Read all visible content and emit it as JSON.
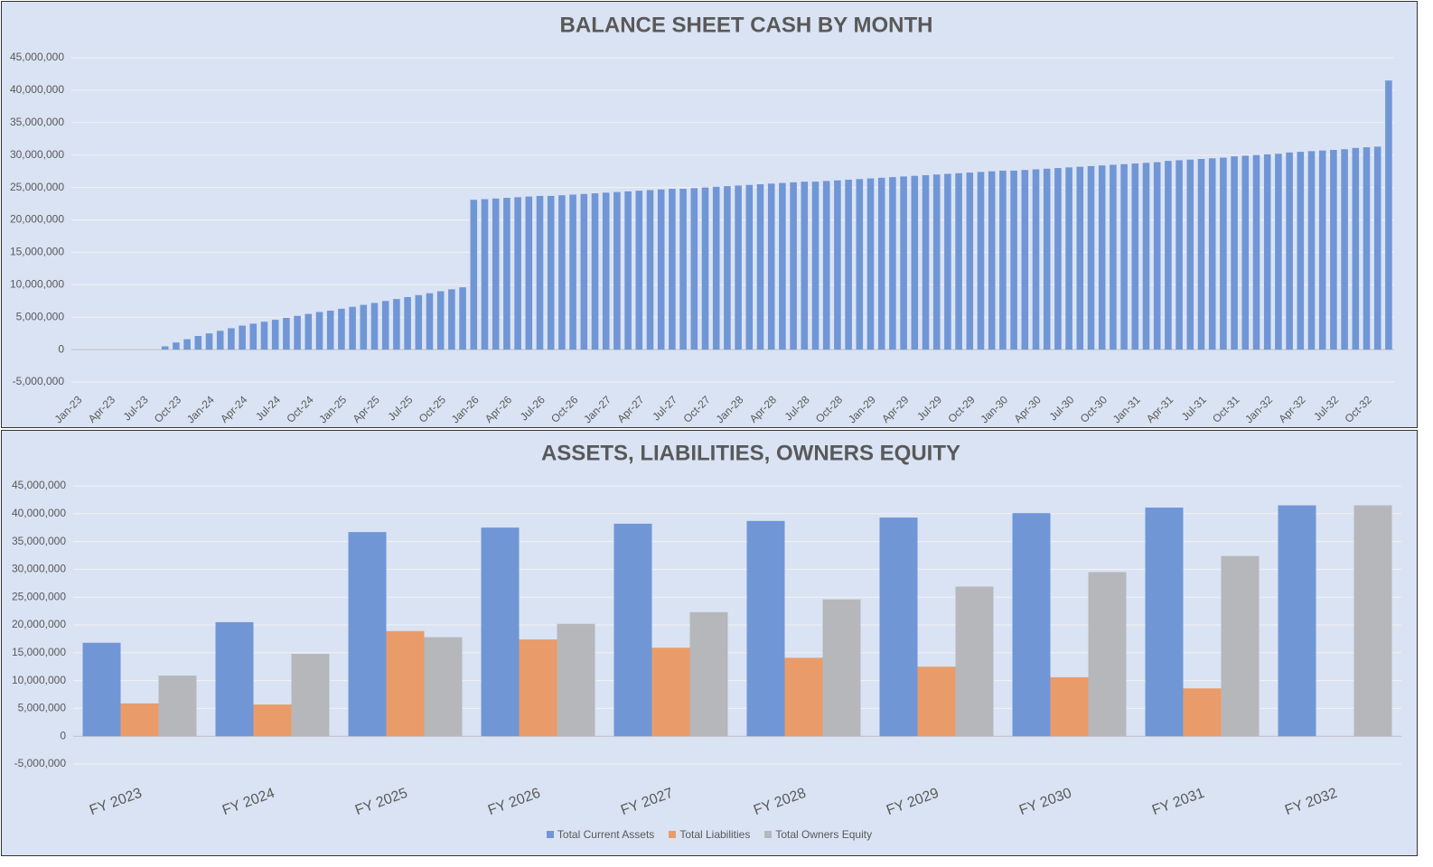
{
  "chart_data": [
    {
      "type": "bar",
      "title": "BALANCE SHEET CASH BY MONTH",
      "color": "#7096d6",
      "grid": true,
      "ylim": [
        -5000000,
        45000000
      ],
      "yticks": [
        {
          "value": -5000000,
          "label": "-5,000,000"
        },
        0,
        {
          "value": 5000000,
          "label": "5,000,000"
        },
        {
          "value": 10000000,
          "label": "10,000,000"
        },
        {
          "value": 15000000,
          "label": "15,000,000"
        },
        {
          "value": 20000000,
          "label": "20,000,000"
        },
        {
          "value": 25000000,
          "label": "25,000,000"
        },
        {
          "value": 30000000,
          "label": "30,000,000"
        },
        {
          "value": 35000000,
          "label": "35,000,000"
        },
        {
          "value": 40000000,
          "label": "40,000,000"
        },
        {
          "value": 45000000,
          "label": "45,000,000"
        }
      ],
      "categories": [
        "Jan-23",
        null,
        null,
        "Apr-23",
        null,
        null,
        "Jul-23",
        null,
        null,
        "Oct-23",
        null,
        null,
        "Jan-24",
        null,
        null,
        "Apr-24",
        null,
        null,
        "Jul-24",
        null,
        null,
        "Oct-24",
        null,
        null,
        "Jan-25",
        null,
        null,
        "Apr-25",
        null,
        null,
        "Jul-25",
        null,
        null,
        "Oct-25",
        null,
        null,
        "Jan-26",
        null,
        null,
        "Apr-26",
        null,
        null,
        "Jul-26",
        null,
        null,
        "Oct-26",
        null,
        null,
        "Jan-27",
        null,
        null,
        "Apr-27",
        null,
        null,
        "Jul-27",
        null,
        null,
        "Oct-27",
        null,
        null,
        "Jan-28",
        null,
        null,
        "Apr-28",
        null,
        null,
        "Jul-28",
        null,
        null,
        "Oct-28",
        null,
        null,
        "Jan-29",
        null,
        null,
        "Apr-29",
        null,
        null,
        "Jul-29",
        null,
        null,
        "Oct-29",
        null,
        null,
        "Jan-30",
        null,
        null,
        "Apr-30",
        null,
        null,
        "Jul-30",
        null,
        null,
        "Oct-30",
        null,
        null,
        "Jan-31",
        null,
        null,
        "Apr-31",
        null,
        null,
        "Jul-31",
        null,
        null,
        "Oct-31",
        null,
        null,
        "Jan-32",
        null,
        null,
        "Apr-32",
        null,
        null,
        "Jul-32",
        null,
        null,
        "Oct-32",
        null,
        null
      ],
      "values": [
        0,
        0,
        0,
        0,
        0,
        0,
        0,
        0,
        500000,
        1100000,
        1600000,
        2100000,
        2500000,
        2900000,
        3300000,
        3700000,
        4000000,
        4300000,
        4600000,
        4900000,
        5200000,
        5500000,
        5800000,
        6000000,
        6300000,
        6600000,
        6900000,
        7200000,
        7500000,
        7800000,
        8100000,
        8400000,
        8700000,
        9000000,
        9300000,
        9600000,
        23100000,
        23200000,
        23300000,
        23400000,
        23500000,
        23600000,
        23700000,
        23700000,
        23800000,
        23900000,
        24000000,
        24100000,
        24200000,
        24300000,
        24400000,
        24500000,
        24600000,
        24700000,
        24800000,
        24800000,
        24900000,
        25000000,
        25100000,
        25200000,
        25300000,
        25400000,
        25500000,
        25600000,
        25700000,
        25800000,
        25900000,
        25900000,
        26000000,
        26100000,
        26200000,
        26300000,
        26400000,
        26500000,
        26600000,
        26700000,
        26800000,
        26900000,
        27000000,
        27100000,
        27200000,
        27300000,
        27400000,
        27500000,
        27600000,
        27600000,
        27700000,
        27800000,
        27900000,
        28000000,
        28100000,
        28200000,
        28300000,
        28400000,
        28500000,
        28600000,
        28700000,
        28800000,
        28900000,
        29100000,
        29200000,
        29300000,
        29400000,
        29500000,
        29600000,
        29800000,
        29900000,
        30000000,
        30100000,
        30200000,
        30400000,
        30500000,
        30600000,
        30700000,
        30800000,
        30900000,
        31100000,
        31200000,
        31300000,
        41500000
      ]
    },
    {
      "type": "bar",
      "title": "ASSETS, LIABILITIES, OWNERS EQUITY",
      "grid": true,
      "legend": "bottom",
      "ylim": [
        -5000000,
        45000000
      ],
      "yticks": [
        {
          "value": -5000000,
          "label": "-5,000,000"
        },
        0,
        {
          "value": 5000000,
          "label": "5,000,000"
        },
        {
          "value": 10000000,
          "label": "10,000,000"
        },
        {
          "value": 15000000,
          "label": "15,000,000"
        },
        {
          "value": 20000000,
          "label": "20,000,000"
        },
        {
          "value": 25000000,
          "label": "25,000,000"
        },
        {
          "value": 30000000,
          "label": "30,000,000"
        },
        {
          "value": 35000000,
          "label": "35,000,000"
        },
        {
          "value": 40000000,
          "label": "40,000,000"
        },
        {
          "value": 45000000,
          "label": "45,000,000"
        }
      ],
      "categories": [
        "FY 2023",
        "FY 2024",
        "FY 2025",
        "FY 2026",
        "FY 2027",
        "FY 2028",
        "FY 2029",
        "FY 2030",
        "FY 2031",
        "FY 2032"
      ],
      "series": [
        {
          "name": "Total Current Assets",
          "color": "#7096d6",
          "values": [
            16800000,
            20500000,
            36700000,
            37500000,
            38200000,
            38700000,
            39300000,
            40100000,
            41100000,
            41500000
          ]
        },
        {
          "name": "Total Liabilities",
          "color": "#e99c6a",
          "values": [
            5900000,
            5700000,
            18900000,
            17400000,
            15900000,
            14100000,
            12500000,
            10600000,
            8600000,
            0
          ]
        },
        {
          "name": "Total Owners Equity",
          "color": "#b5b7bb",
          "values": [
            10900000,
            14800000,
            17800000,
            20200000,
            22300000,
            24600000,
            26900000,
            29500000,
            32400000,
            41500000
          ]
        }
      ]
    }
  ]
}
